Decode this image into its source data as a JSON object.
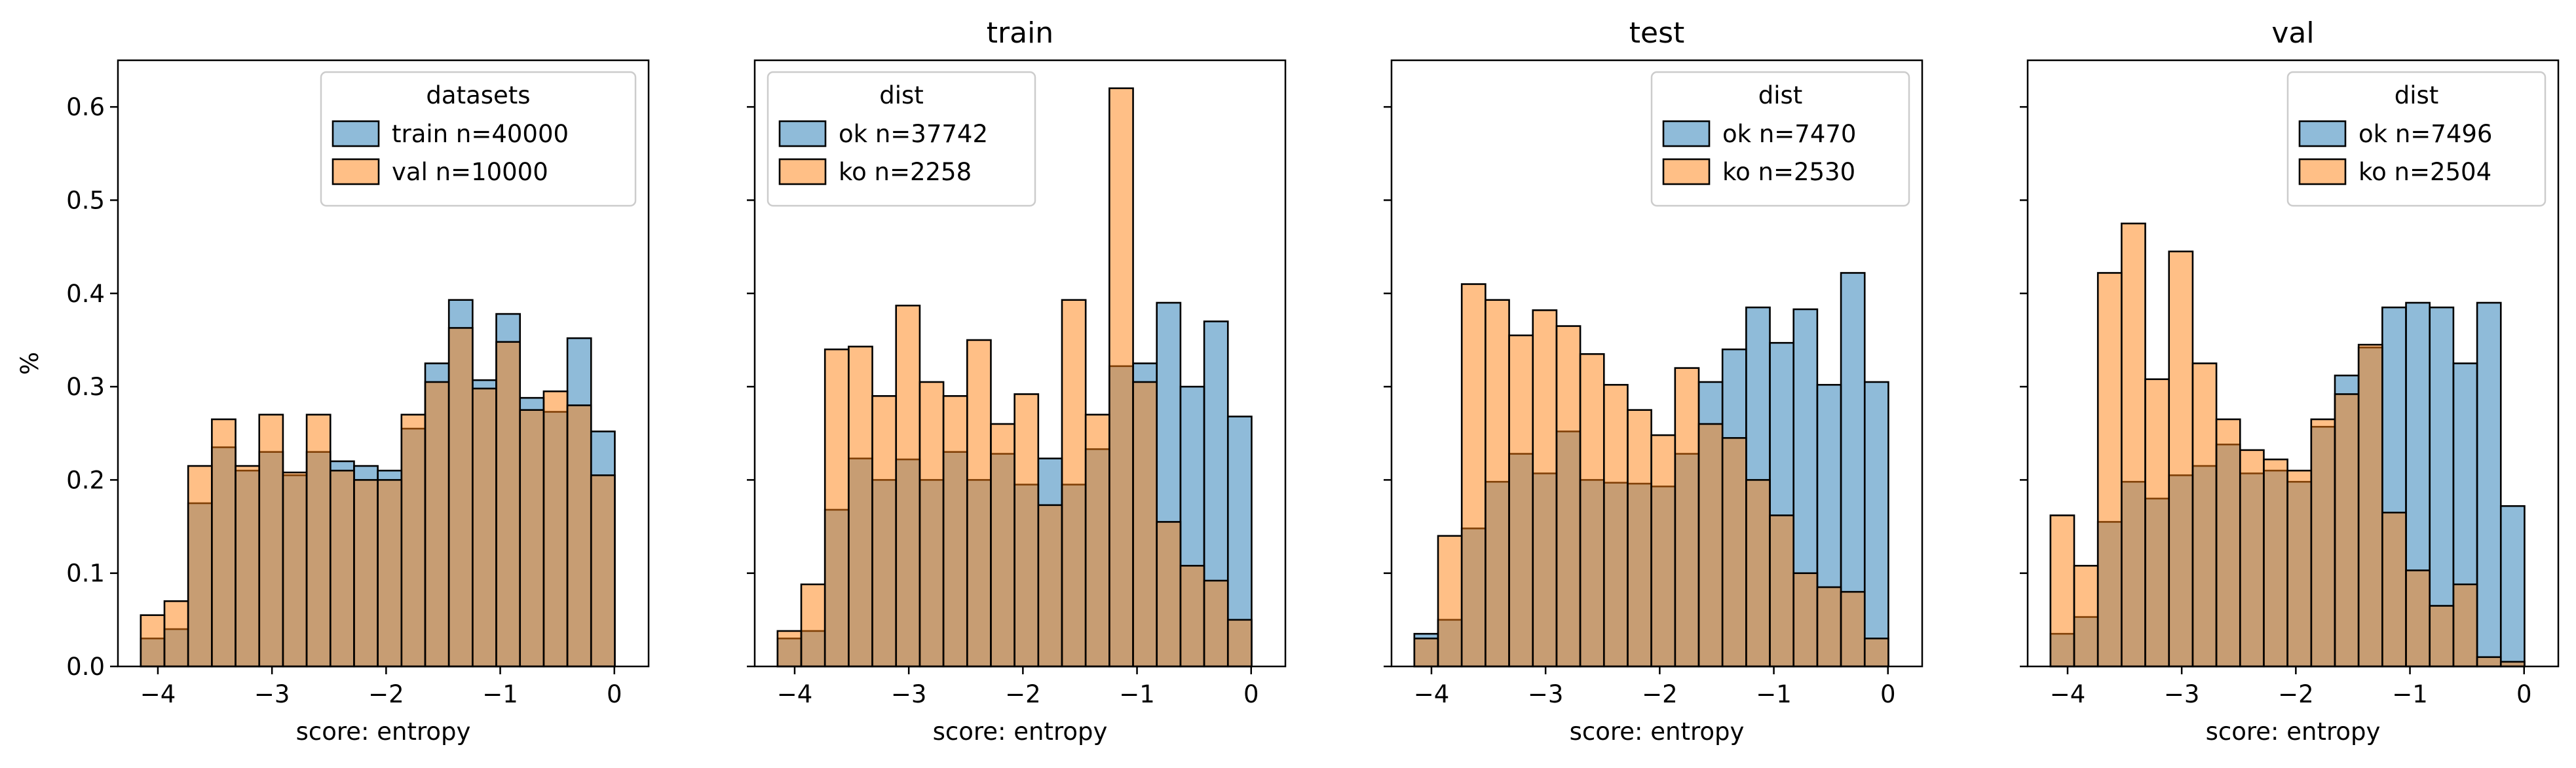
{
  "figure": {
    "ylabel": "%",
    "xlabel": "score: entropy"
  },
  "chart_data": [
    {
      "type": "histogram",
      "title": "",
      "xlabel": "score: entropy",
      "ylabel": "%",
      "xlim": [
        -4.35,
        0.3
      ],
      "ylim": [
        0,
        0.65
      ],
      "xticks": [
        -4,
        -3,
        -2,
        -1,
        0
      ],
      "yticks": [
        0.0,
        0.1,
        0.2,
        0.3,
        0.4,
        0.5,
        0.6
      ],
      "legend_title": "datasets",
      "legend_position": "top-right",
      "bin_start": -4.15,
      "bin_width": 0.2077,
      "series": [
        {
          "name": "train n=40000",
          "color": "#1f77b4",
          "values": [
            0.03,
            0.04,
            0.175,
            0.235,
            0.21,
            0.23,
            0.205,
            0.23,
            0.22,
            0.215,
            0.21,
            0.255,
            0.325,
            0.393,
            0.307,
            0.378,
            0.288,
            0.273,
            0.352,
            0.252
          ]
        },
        {
          "name": "val n=10000",
          "color": "#ff7f0e",
          "values": [
            0.055,
            0.07,
            0.215,
            0.265,
            0.215,
            0.27,
            0.208,
            0.27,
            0.21,
            0.2,
            0.2,
            0.27,
            0.305,
            0.363,
            0.298,
            0.348,
            0.275,
            0.295,
            0.28,
            0.205
          ]
        }
      ]
    },
    {
      "type": "histogram",
      "title": "train",
      "xlabel": "score: entropy",
      "ylabel": "",
      "xlim": [
        -4.35,
        0.3
      ],
      "ylim": [
        0,
        0.65
      ],
      "xticks": [
        -4,
        -3,
        -2,
        -1,
        0
      ],
      "yticks": [
        0.0,
        0.1,
        0.2,
        0.3,
        0.4,
        0.5,
        0.6
      ],
      "legend_title": "dist",
      "legend_position": "top-left",
      "bin_start": -4.15,
      "bin_width": 0.2077,
      "series": [
        {
          "name": "ok n=37742",
          "color": "#1f77b4",
          "values": [
            0.03,
            0.038,
            0.168,
            0.223,
            0.2,
            0.222,
            0.2,
            0.23,
            0.2,
            0.228,
            0.195,
            0.223,
            0.195,
            0.233,
            0.322,
            0.325,
            0.39,
            0.3,
            0.37,
            0.268
          ]
        },
        {
          "name": "ko n=2258",
          "color": "#ff7f0e",
          "values": [
            0.038,
            0.088,
            0.34,
            0.343,
            0.29,
            0.387,
            0.305,
            0.29,
            0.35,
            0.26,
            0.292,
            0.173,
            0.393,
            0.27,
            0.62,
            0.305,
            0.155,
            0.108,
            0.092,
            0.05
          ]
        }
      ]
    },
    {
      "type": "histogram",
      "title": "test",
      "xlabel": "score: entropy",
      "ylabel": "",
      "xlim": [
        -4.35,
        0.3
      ],
      "ylim": [
        0,
        0.65
      ],
      "xticks": [
        -4,
        -3,
        -2,
        -1,
        0
      ],
      "yticks": [
        0.0,
        0.1,
        0.2,
        0.3,
        0.4,
        0.5,
        0.6
      ],
      "legend_title": "dist",
      "legend_position": "top-right",
      "bin_start": -4.15,
      "bin_width": 0.2077,
      "series": [
        {
          "name": "ok n=7470",
          "color": "#1f77b4",
          "values": [
            0.035,
            0.05,
            0.148,
            0.198,
            0.228,
            0.207,
            0.252,
            0.2,
            0.197,
            0.196,
            0.193,
            0.228,
            0.305,
            0.34,
            0.385,
            0.347,
            0.383,
            0.302,
            0.422,
            0.305
          ]
        },
        {
          "name": "ko n=2530",
          "color": "#ff7f0e",
          "values": [
            0.03,
            0.14,
            0.41,
            0.393,
            0.355,
            0.382,
            0.365,
            0.335,
            0.302,
            0.275,
            0.248,
            0.32,
            0.26,
            0.245,
            0.2,
            0.162,
            0.1,
            0.085,
            0.08,
            0.03
          ]
        }
      ]
    },
    {
      "type": "histogram",
      "title": "val",
      "xlabel": "score: entropy",
      "ylabel": "",
      "xlim": [
        -4.35,
        0.3
      ],
      "ylim": [
        0,
        0.65
      ],
      "xticks": [
        -4,
        -3,
        -2,
        -1,
        0
      ],
      "yticks": [
        0.0,
        0.1,
        0.2,
        0.3,
        0.4,
        0.5,
        0.6
      ],
      "legend_title": "dist",
      "legend_position": "top-right",
      "bin_start": -4.15,
      "bin_width": 0.2077,
      "series": [
        {
          "name": "ok n=7496",
          "color": "#1f77b4",
          "values": [
            0.035,
            0.053,
            0.155,
            0.198,
            0.18,
            0.205,
            0.215,
            0.238,
            0.207,
            0.21,
            0.198,
            0.257,
            0.312,
            0.342,
            0.385,
            0.39,
            0.385,
            0.325,
            0.39,
            0.172
          ]
        },
        {
          "name": "ko n=2504",
          "color": "#ff7f0e",
          "values": [
            0.162,
            0.108,
            0.422,
            0.475,
            0.308,
            0.445,
            0.325,
            0.265,
            0.232,
            0.222,
            0.21,
            0.265,
            0.292,
            0.345,
            0.165,
            0.103,
            0.065,
            0.088,
            0.01,
            0.005
          ]
        }
      ]
    }
  ]
}
